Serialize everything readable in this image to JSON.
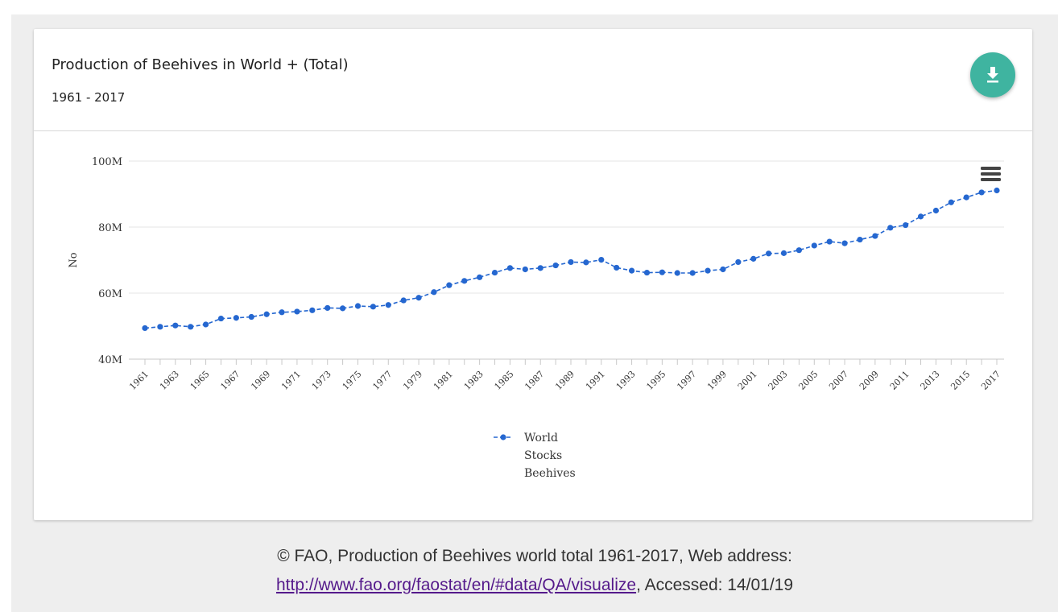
{
  "card": {
    "title": "Production of Beehives in World + (Total)",
    "subtitle": "1961 - 2017"
  },
  "caption": {
    "prefix": "© FAO, Production of Beehives world total 1961-2017, Web address:",
    "link": "http://www.fao.org/faostat/en/#data/QA/visualize",
    "suffix": ", Accessed: 14/01/19"
  },
  "icons": {
    "download": "download-icon",
    "menu": "hamburger-menu-icon"
  },
  "colors": {
    "series": "#2567d0",
    "download_button": "#3fb4a0",
    "grid": "#e6e6e6"
  },
  "chart_data": {
    "type": "line",
    "ylabel": "No",
    "xlabel": "",
    "ylim": [
      40000000,
      100000000
    ],
    "yticks": [
      40000000,
      60000000,
      80000000,
      100000000
    ],
    "ytick_labels": [
      "40M",
      "60M",
      "80M",
      "100M"
    ],
    "xticks": [
      "1961",
      "1963",
      "1965",
      "1967",
      "1969",
      "1971",
      "1973",
      "1975",
      "1977",
      "1979",
      "1981",
      "1983",
      "1985",
      "1987",
      "1989",
      "1991",
      "1993",
      "1995",
      "1997",
      "1999",
      "2001",
      "2003",
      "2005",
      "2007",
      "2009",
      "2011",
      "2013",
      "2015",
      "2017"
    ],
    "grid": true,
    "legend": "bottom-center",
    "series": [
      {
        "name": "World Stocks Beehives",
        "legend_lines": [
          "World",
          "Stocks",
          "Beehives"
        ],
        "color": "#2567d0",
        "x": [
          1961,
          1962,
          1963,
          1964,
          1965,
          1966,
          1967,
          1968,
          1969,
          1970,
          1971,
          1972,
          1973,
          1974,
          1975,
          1976,
          1977,
          1978,
          1979,
          1980,
          1981,
          1982,
          1983,
          1984,
          1985,
          1986,
          1987,
          1988,
          1989,
          1990,
          1991,
          1992,
          1993,
          1994,
          1995,
          1996,
          1997,
          1998,
          1999,
          2000,
          2001,
          2002,
          2003,
          2004,
          2005,
          2006,
          2007,
          2008,
          2009,
          2010,
          2011,
          2012,
          2013,
          2014,
          2015,
          2016,
          2017
        ],
        "values": [
          49400000,
          49800000,
          50200000,
          49800000,
          50500000,
          52300000,
          52500000,
          52800000,
          53600000,
          54200000,
          54400000,
          54800000,
          55500000,
          55400000,
          56100000,
          55900000,
          56400000,
          57800000,
          58600000,
          60300000,
          62400000,
          63700000,
          64800000,
          66200000,
          67600000,
          67200000,
          67600000,
          68400000,
          69400000,
          69300000,
          70100000,
          67700000,
          66800000,
          66200000,
          66300000,
          66100000,
          66100000,
          66800000,
          67200000,
          69400000,
          70400000,
          72000000,
          72100000,
          73000000,
          74400000,
          75600000,
          75100000,
          76200000,
          77300000,
          79800000,
          80600000,
          83200000,
          85000000,
          87500000,
          89000000,
          90500000,
          91100000
        ]
      }
    ]
  }
}
